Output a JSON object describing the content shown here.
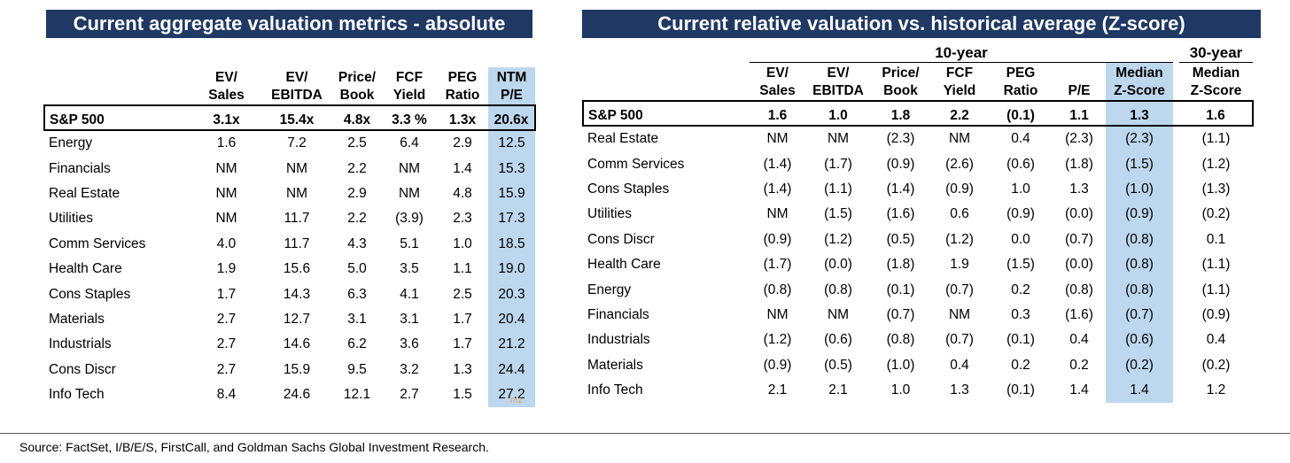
{
  "left_panel": {
    "title": "Current aggregate valuation metrics - absolute",
    "headers": [
      {
        "line1": "EV/",
        "line2": "Sales"
      },
      {
        "line1": "EV/",
        "line2": "EBITDA"
      },
      {
        "line1": "Price/",
        "line2": "Book"
      },
      {
        "line1": "FCF",
        "line2": "Yield"
      },
      {
        "line1": "PEG",
        "line2": "Ratio"
      },
      {
        "line1": "NTM",
        "line2": "P/E"
      }
    ],
    "highlight_color": "#bdd7ee",
    "index_row": {
      "name": "S&P 500",
      "values": [
        "3.1x",
        "15.4x",
        "4.8x",
        "3.3 %",
        "1.3x",
        "20.6x"
      ]
    },
    "rows": [
      {
        "name": "Energy",
        "values": [
          "1.6",
          "7.2",
          "2.5",
          "6.4",
          "2.9",
          "12.5"
        ]
      },
      {
        "name": "Financials",
        "values": [
          "NM",
          "NM",
          "2.2",
          "NM",
          "1.4",
          "15.3"
        ]
      },
      {
        "name": "Real Estate",
        "values": [
          "NM",
          "NM",
          "2.9",
          "NM",
          "4.8",
          "15.9"
        ]
      },
      {
        "name": "Utilities",
        "values": [
          "NM",
          "11.7",
          "2.2",
          "(3.9)",
          "2.3",
          "17.3"
        ]
      },
      {
        "name": "Comm Services",
        "values": [
          "4.0",
          "11.7",
          "4.3",
          "5.1",
          "1.0",
          "18.5"
        ]
      },
      {
        "name": "Health Care",
        "values": [
          "1.9",
          "15.6",
          "5.0",
          "3.5",
          "1.1",
          "19.0"
        ]
      },
      {
        "name": "Cons Staples",
        "values": [
          "1.7",
          "14.3",
          "6.3",
          "4.1",
          "2.5",
          "20.3"
        ]
      },
      {
        "name": "Materials",
        "values": [
          "2.7",
          "12.7",
          "3.1",
          "3.1",
          "1.7",
          "20.4"
        ]
      },
      {
        "name": "Industrials",
        "values": [
          "2.7",
          "14.6",
          "6.2",
          "3.6",
          "1.7",
          "21.2"
        ]
      },
      {
        "name": "Cons Discr",
        "values": [
          "2.7",
          "15.9",
          "9.5",
          "3.2",
          "1.3",
          "24.4"
        ]
      },
      {
        "name": "Info Tech",
        "values": [
          "8.4",
          "24.6",
          "12.1",
          "2.7",
          "1.5",
          "27.2"
        ]
      }
    ]
  },
  "right_panel": {
    "title": "Current relative valuation vs. historical average (Z-score)",
    "group_10y": "10-year",
    "group_30y": "30-year",
    "headers": [
      {
        "line1": "EV/",
        "line2": "Sales"
      },
      {
        "line1": "EV/",
        "line2": "EBITDA"
      },
      {
        "line1": "Price/",
        "line2": "Book"
      },
      {
        "line1": "FCF",
        "line2": "Yield"
      },
      {
        "line1": "PEG",
        "line2": "Ratio"
      },
      {
        "line1": "",
        "line2": "P/E"
      },
      {
        "line1": "Median",
        "line2": "Z-Score"
      },
      {
        "line1": "Median",
        "line2": "Z-Score"
      }
    ],
    "highlight_color": "#bdd7ee",
    "index_row": {
      "name": "S&P 500",
      "values": [
        "1.6",
        "1.0",
        "1.8",
        "2.2",
        "(0.1)",
        "1.1",
        "1.3",
        "1.6"
      ]
    },
    "rows": [
      {
        "name": "Real Estate",
        "values": [
          "NM",
          "NM",
          "(2.3)",
          "NM",
          "0.4",
          "(2.3)",
          "(2.3)",
          "(1.1)"
        ]
      },
      {
        "name": "Comm Services",
        "values": [
          "(1.4)",
          "(1.7)",
          "(0.9)",
          "(2.6)",
          "(0.6)",
          "(1.8)",
          "(1.5)",
          "(1.2)"
        ]
      },
      {
        "name": "Cons Staples",
        "values": [
          "(1.4)",
          "(1.1)",
          "(1.4)",
          "(0.9)",
          "1.0",
          "1.3",
          "(1.0)",
          "(1.3)"
        ]
      },
      {
        "name": "Utilities",
        "values": [
          "NM",
          "(1.5)",
          "(1.6)",
          "0.6",
          "(0.9)",
          "(0.0)",
          "(0.9)",
          "(0.2)"
        ]
      },
      {
        "name": "Cons Discr",
        "values": [
          "(0.9)",
          "(1.2)",
          "(0.5)",
          "(1.2)",
          "0.0",
          "(0.7)",
          "(0.8)",
          "0.1"
        ]
      },
      {
        "name": "Health Care",
        "values": [
          "(1.7)",
          "(0.0)",
          "(1.8)",
          "1.9",
          "(1.5)",
          "(0.0)",
          "(0.8)",
          "(1.1)"
        ]
      },
      {
        "name": "Energy",
        "values": [
          "(0.8)",
          "(0.8)",
          "(0.1)",
          "(0.7)",
          "0.2",
          "(0.8)",
          "(0.8)",
          "(1.1)"
        ]
      },
      {
        "name": "Financials",
        "values": [
          "NM",
          "NM",
          "(0.7)",
          "NM",
          "0.3",
          "(1.6)",
          "(0.7)",
          "(0.9)"
        ]
      },
      {
        "name": "Industrials",
        "values": [
          "(1.2)",
          "(0.6)",
          "(0.8)",
          "(0.7)",
          "(0.1)",
          "0.4",
          "(0.6)",
          "0.4"
        ]
      },
      {
        "name": "Materials",
        "values": [
          "(0.9)",
          "(0.5)",
          "(1.0)",
          "0.4",
          "0.2",
          "0.2",
          "(0.2)",
          "(0.2)"
        ]
      },
      {
        "name": "Info Tech",
        "values": [
          "2.1",
          "2.1",
          "1.0",
          "1.3",
          "(0.1)",
          "1.4",
          "1.4",
          "1.2"
        ]
      }
    ]
  },
  "footer": {
    "source": "Source: FactSet, I/B/E/S, FirstCall, and Goldman Sachs Global Investment Research."
  },
  "watermark": "mz"
}
